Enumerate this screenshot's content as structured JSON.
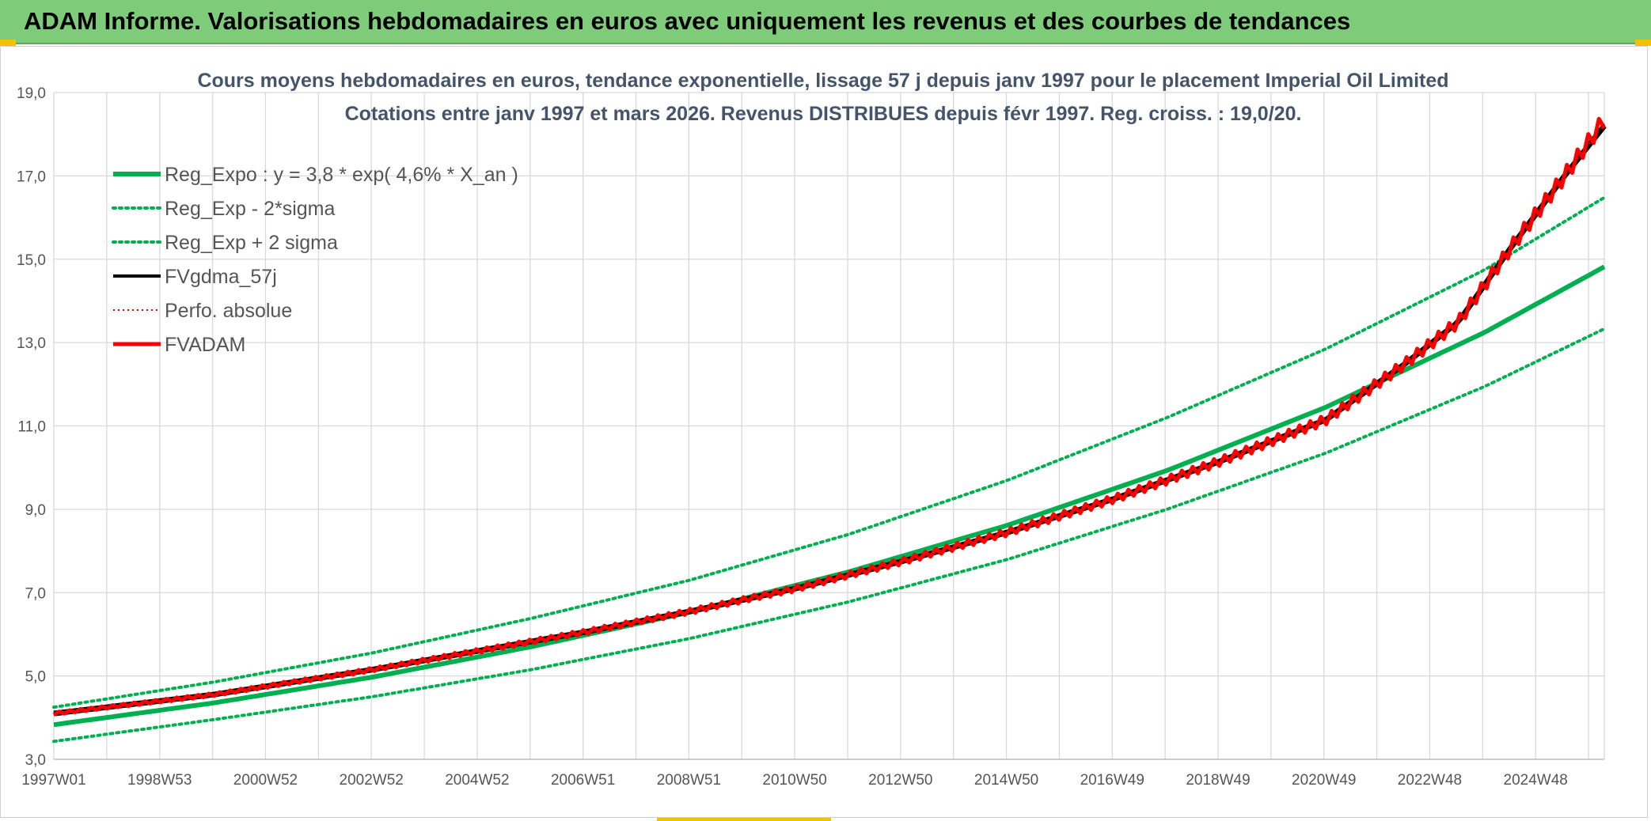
{
  "banner": {
    "title": "ADAM Informe. Valorisations hebdomadaires en euros avec uniquement les revenus et des courbes de tendances"
  },
  "colors": {
    "reg": "#00b050",
    "band": "#00b050",
    "fvgdma": "#000000",
    "perfo": "#e00000",
    "fvadam": "#ff0000",
    "banner": "#7ecb7a",
    "grid": "#d9d9d9",
    "title": "#44546a"
  },
  "chart_data": {
    "type": "line",
    "title": "Cours moyens hebdomadaires en euros, tendance exponentielle, lissage 57 j depuis janv 1997 pour le placement Imperial Oil Limited",
    "subtitle": "Cotations entre janv 1997 et mars 2026. Revenus DISTRIBUES depuis févr 1997. Reg. croiss. : 19,0/20.",
    "xlabel": "",
    "ylabel": "",
    "ylim": [
      3.0,
      19.0
    ],
    "yticks": [
      "3,0",
      "5,0",
      "7,0",
      "9,0",
      "11,0",
      "13,0",
      "15,0",
      "17,0",
      "19,0"
    ],
    "x_tick_labels": [
      "1997W01",
      "1998W53",
      "2000W52",
      "2002W52",
      "2004W52",
      "2006W51",
      "2008W51",
      "2010W50",
      "2012W50",
      "2014W50",
      "2016W49",
      "2018W49",
      "2020W49",
      "2022W48",
      "2024W48"
    ],
    "x_range_years": [
      1997.0,
      2026.25
    ],
    "grid": true,
    "legend_position": "top-left",
    "legend": [
      "Reg_Expo : y = 3,8 * exp( 4,6% *  X_an )",
      "Reg_Exp - 2*sigma",
      "Reg_Exp + 2 sigma",
      "FVgdma_57j",
      "Perfo. absolue",
      "FVADAM"
    ],
    "series": [
      {
        "name": "Reg_Expo : y = 3,8 * exp( 4,6% *  X_an )",
        "style": "solid-thick",
        "x": [
          1997,
          2000,
          2003,
          2006,
          2009,
          2012,
          2015,
          2018,
          2021,
          2024,
          2026.25
        ],
        "values": [
          3.83,
          4.35,
          4.97,
          5.7,
          6.53,
          7.5,
          8.62,
          9.93,
          11.45,
          13.25,
          14.82
        ]
      },
      {
        "name": "Reg_Exp - 2*sigma",
        "style": "dotted",
        "x": [
          1997,
          2000,
          2003,
          2006,
          2009,
          2012,
          2015,
          2018,
          2021,
          2024,
          2026.25
        ],
        "values": [
          3.43,
          3.95,
          4.5,
          5.15,
          5.9,
          6.78,
          7.8,
          9.0,
          10.35,
          11.95,
          13.33
        ]
      },
      {
        "name": "Reg_Exp + 2 sigma",
        "style": "dotted",
        "x": [
          1997,
          2000,
          2003,
          2006,
          2009,
          2012,
          2015,
          2018,
          2021,
          2024,
          2026.25
        ],
        "values": [
          4.25,
          4.85,
          5.55,
          6.38,
          7.3,
          8.4,
          9.7,
          11.2,
          12.85,
          14.75,
          16.48
        ]
      },
      {
        "name": "FVgdma_57j",
        "style": "solid-thin",
        "x": [
          1997,
          2000,
          2003,
          2005,
          2007,
          2009,
          2011,
          2013,
          2015,
          2017,
          2019,
          2021,
          2022.5,
          2023.5,
          2024.5,
          2025.5,
          2026.25
        ],
        "values": [
          4.1,
          4.55,
          5.15,
          5.6,
          6.05,
          6.55,
          7.1,
          7.75,
          8.45,
          9.25,
          10.15,
          11.15,
          12.5,
          13.5,
          15.3,
          17.0,
          18.2
        ]
      },
      {
        "name": "Perfo. absolue",
        "style": "dotted-red",
        "x": [
          1997,
          2000,
          2003,
          2005,
          2007,
          2009,
          2011,
          2013,
          2015,
          2017,
          2019,
          2021,
          2022.5,
          2023.5,
          2024.5,
          2025.5,
          2026.25
        ],
        "values": [
          4.1,
          4.55,
          5.15,
          5.6,
          6.05,
          6.55,
          7.1,
          7.75,
          8.45,
          9.25,
          10.15,
          11.15,
          12.5,
          13.5,
          15.3,
          17.0,
          18.25
        ]
      },
      {
        "name": "FVADAM",
        "style": "solid-thick-stepped",
        "x": [
          1997,
          2000,
          2003,
          2005,
          2007,
          2009,
          2011,
          2013,
          2015,
          2017,
          2019,
          2021,
          2022.5,
          2023.5,
          2024.5,
          2025.5,
          2026.25
        ],
        "values": [
          4.1,
          4.55,
          5.15,
          5.6,
          6.05,
          6.55,
          7.1,
          7.75,
          8.45,
          9.25,
          10.15,
          11.15,
          12.5,
          13.5,
          15.3,
          17.0,
          18.35
        ]
      }
    ]
  }
}
